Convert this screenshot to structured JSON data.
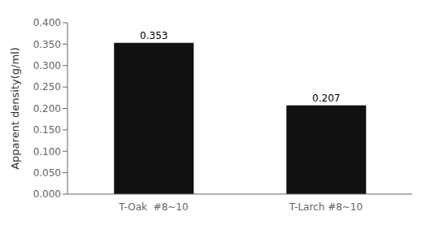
{
  "chart_data": {
    "type": "bar",
    "categories": [
      "T-Oak  #8~10",
      "T-Larch #8~10"
    ],
    "values": [
      0.353,
      0.207
    ],
    "color": "#111111",
    "ylabel": "Apparent density(g/ml)",
    "ylim": [
      0,
      0.4
    ],
    "yticks": [
      {
        "value": 0.0,
        "label": "0.000"
      },
      {
        "value": 0.05,
        "label": "0.050"
      },
      {
        "value": 0.1,
        "label": "0.100"
      },
      {
        "value": 0.15,
        "label": "0.150"
      },
      {
        "value": 0.2,
        "label": "0.200"
      },
      {
        "value": 0.25,
        "label": "0.250"
      },
      {
        "value": 0.3,
        "label": "0.300"
      },
      {
        "value": 0.35,
        "label": "0.350"
      },
      {
        "value": 0.4,
        "label": "0.400"
      }
    ],
    "data_labels": true,
    "grid": false
  }
}
